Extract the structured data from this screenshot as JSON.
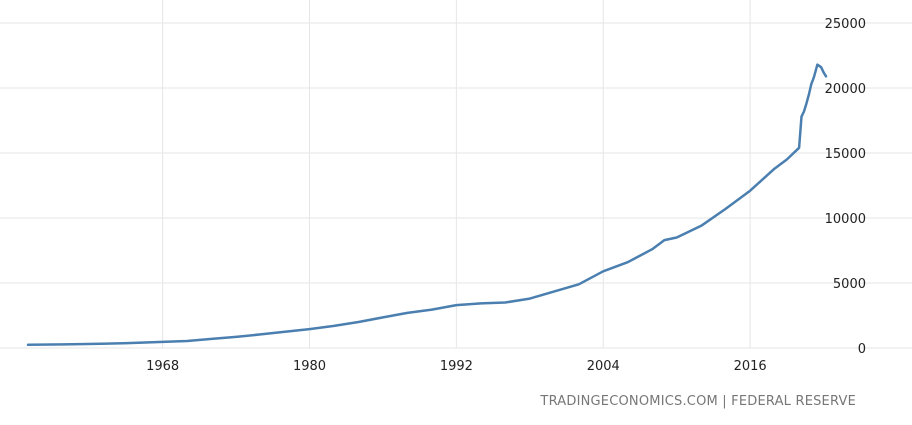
{
  "source_text": "TRADINGECONOMICS.COM | FEDERAL RESERVE",
  "chart_data": {
    "type": "line",
    "title": "",
    "xlabel": "",
    "ylabel": "",
    "xlim": [
      1957,
      2022.2
    ],
    "ylim": [
      0,
      25000
    ],
    "x_ticks": [
      1968,
      1980,
      1992,
      2004,
      2016
    ],
    "y_ticks": [
      0,
      5000,
      10000,
      15000,
      20000,
      25000
    ],
    "grid": true,
    "legend": "none",
    "line_color": "#4a7fb0",
    "series": [
      {
        "x": [
          1957,
          1960,
          1963,
          1966,
          1968,
          1970,
          1972,
          1974,
          1976,
          1978,
          1980,
          1982,
          1984,
          1986,
          1988,
          1990,
          1992,
          1994,
          1996,
          1998,
          2000,
          2002,
          2004,
          2006,
          2008,
          2009,
          2010,
          2012,
          2014,
          2016,
          2018,
          2019,
          2020.0,
          2020.2,
          2020.4,
          2020.6,
          2020.8,
          2021.0,
          2021.2,
          2021.5,
          2021.8,
          2022.0,
          2022.2
        ],
        "values": [
          250,
          280,
          320,
          400,
          470,
          540,
          700,
          850,
          1050,
          1250,
          1450,
          1700,
          2000,
          2350,
          2700,
          2950,
          3300,
          3430,
          3500,
          3800,
          4350,
          4900,
          5900,
          6600,
          7600,
          8300,
          8500,
          9400,
          10700,
          12100,
          13800,
          14500,
          15400,
          17800,
          18200,
          18800,
          19500,
          20300,
          20800,
          21800,
          21600,
          21200,
          20900
        ]
      }
    ]
  }
}
